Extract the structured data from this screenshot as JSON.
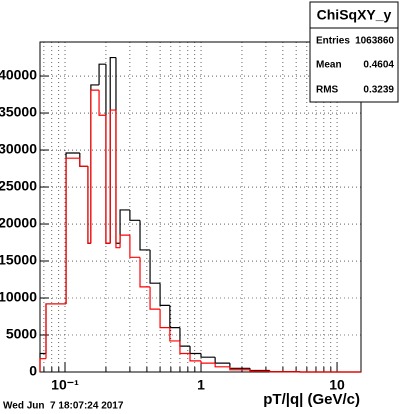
{
  "chart_data": {
    "type": "histogram",
    "title": "ChiSqXY_y",
    "stats": {
      "entries_label": "Entries",
      "entries": 1063860,
      "mean_label": "Mean",
      "mean": 0.4604,
      "rms_label": "RMS",
      "rms": 0.3239
    },
    "x_label": "pT/|q| (GeV/c)",
    "timestamp": "Wed Jun  7 18:07:24 2017",
    "bins": [
      0.0655,
      0.0725,
      0.1018,
      0.1285,
      0.1475,
      0.155,
      0.178,
      0.2,
      0.215,
      0.237,
      0.254,
      0.3,
      0.356,
      0.422,
      0.5,
      0.59,
      0.7,
      0.83,
      1.0,
      1.27,
      1.63,
      2.29,
      3.2,
      5.35,
      15
    ],
    "series": [
      {
        "color": "#000000",
        "values": [
          2500,
          9200,
          29600,
          27800,
          17400,
          38800,
          41600,
          17400,
          42500,
          17400,
          21900,
          20500,
          16500,
          12000,
          9000,
          6000,
          3500,
          2500,
          2000,
          1200,
          500,
          200,
          50,
          0
        ]
      },
      {
        "color": "#ff0000",
        "values": [
          1800,
          9200,
          28900,
          27800,
          17400,
          38100,
          34700,
          17400,
          35400,
          16800,
          18500,
          15500,
          11500,
          8500,
          6000,
          4200,
          2500,
          1500,
          1200,
          700,
          300,
          100,
          30,
          0
        ]
      }
    ],
    "xlim": [
      0.0655,
      15
    ],
    "xlog": true,
    "xticks": [
      {
        "value": 0.1,
        "label": "10⁻¹"
      },
      1,
      10
    ],
    "ylim": [
      0,
      44600
    ],
    "yticks": [
      0,
      5000,
      10000,
      15000,
      20000,
      25000,
      30000,
      35000,
      40000
    ],
    "grid": true
  }
}
